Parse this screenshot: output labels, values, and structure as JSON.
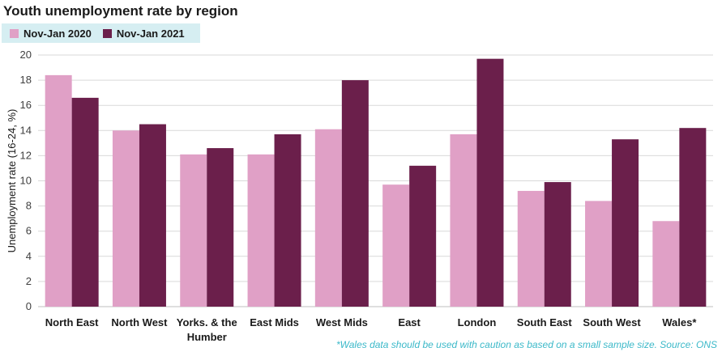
{
  "colors": {
    "series1": "#e0a0c6",
    "series2": "#6b1f4b",
    "legend_bg": "#d6eef2",
    "grid": "#d9d9d9",
    "footnote": "#3cb9c9"
  },
  "chart_data": {
    "type": "bar",
    "title": "Youth unemployment rate by region",
    "ylabel": "Unemployment rate (16-24, %)",
    "xlabel": "",
    "ylim": [
      0,
      20
    ],
    "yticks": [
      0,
      2,
      4,
      6,
      8,
      10,
      12,
      14,
      16,
      18,
      20
    ],
    "grid": true,
    "legend_position": "top-left",
    "categories": [
      "North East",
      "North West",
      "Yorks. & the Humber",
      "East Mids",
      "West Mids",
      "East",
      "London",
      "South East",
      "South West",
      "Wales*"
    ],
    "series": [
      {
        "name": "Nov-Jan 2020",
        "values": [
          18.4,
          14.0,
          12.1,
          12.1,
          14.1,
          9.7,
          13.7,
          9.2,
          8.4,
          6.8
        ]
      },
      {
        "name": "Nov-Jan 2021",
        "values": [
          16.6,
          14.5,
          12.6,
          13.7,
          18.0,
          11.2,
          19.7,
          9.9,
          13.3,
          14.2
        ]
      }
    ],
    "footnote": "*Wales data should be used with caution as based on a small sample size. Source: ONS"
  }
}
